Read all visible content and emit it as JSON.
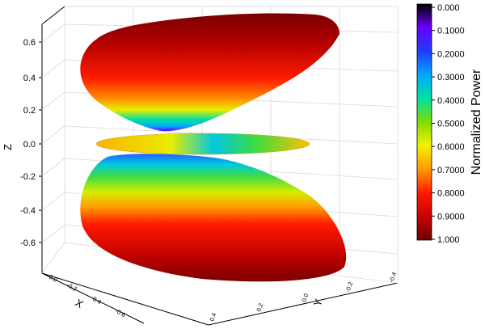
{
  "chart_data": {
    "type": "surface",
    "subtype": "3d-radiation-pattern",
    "title": "",
    "xlabel": "X",
    "ylabel": "Y",
    "zlabel": "Z",
    "x_ticks": [
      "0.0",
      "-0.2",
      "-0.4",
      "-0.6"
    ],
    "y_ticks": [
      "0.4",
      "0.2",
      "0.0",
      "-0.2",
      "-0.4"
    ],
    "z_ticks": [
      "0.6",
      "0.4",
      "0.2",
      "0.0",
      "-0.2",
      "-0.4",
      "-0.6"
    ],
    "zlim": [
      -0.7,
      0.7
    ],
    "colorbar": {
      "title": "Normalized Power",
      "ticks": [
        "0.000",
        "0.1000",
        "0.2000",
        "0.3000",
        "0.4000",
        "0.5000",
        "0.6000",
        "0.7000",
        "0.8000",
        "0.9000",
        "1.000"
      ],
      "range": [
        0,
        1
      ],
      "colors": [
        "#000000",
        "#6a00ff",
        "#1f3cff",
        "#00a8ff",
        "#00e0a0",
        "#7fdc00",
        "#f4f000",
        "#ff9a00",
        "#ff1a00",
        "#c80000",
        "#6a0000"
      ]
    },
    "lobes": [
      {
        "name": "upper",
        "z_range": [
          0.04,
          0.72
        ],
        "power_range": [
          0.15,
          1.0
        ]
      },
      {
        "name": "middle",
        "z_range": [
          -0.04,
          0.04
        ],
        "power_range": [
          0.2,
          0.6
        ]
      },
      {
        "name": "lower",
        "z_range": [
          -0.72,
          -0.04
        ],
        "power_range": [
          0.25,
          1.0
        ]
      }
    ],
    "grid": true
  }
}
